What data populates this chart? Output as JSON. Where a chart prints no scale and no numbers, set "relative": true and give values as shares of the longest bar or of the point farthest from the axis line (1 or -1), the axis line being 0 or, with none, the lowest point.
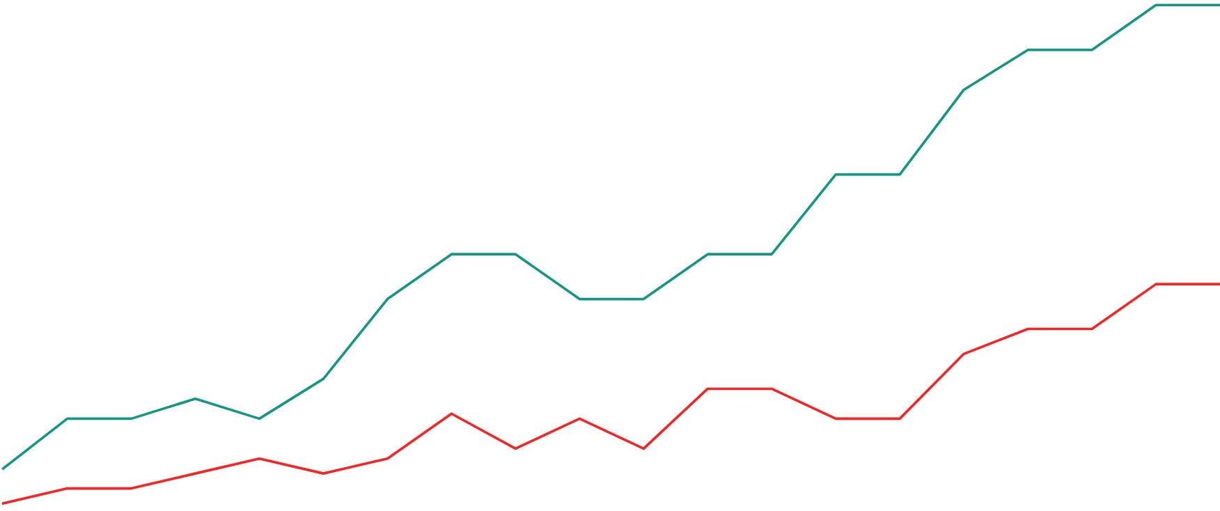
{
  "chart_data": {
    "type": "line",
    "relative": true,
    "tick_labels": false,
    "marker": "none",
    "line_style": "solid",
    "categories": [
      null,
      null,
      null,
      null,
      null,
      null,
      null,
      null,
      null,
      null,
      null,
      null,
      null,
      null,
      null,
      null,
      null,
      null,
      null,
      null
    ],
    "series": [
      {
        "color": "#149684",
        "values": [
          0.07,
          0.17,
          0.17,
          0.21,
          0.17,
          0.25,
          0.41,
          0.5,
          0.5,
          0.41,
          0.41,
          0.5,
          0.5,
          0.66,
          0.66,
          0.83,
          0.91,
          0.91,
          1,
          1
        ]
      },
      {
        "color": "#f52525",
        "values": [
          0,
          0.03,
          0.03,
          0.06,
          0.09,
          0.06,
          0.09,
          0.18,
          0.11,
          0.17,
          0.11,
          0.23,
          0.23,
          0.17,
          0.17,
          0.3,
          0.35,
          0.35,
          0.44,
          0.44
        ]
      }
    ]
  }
}
